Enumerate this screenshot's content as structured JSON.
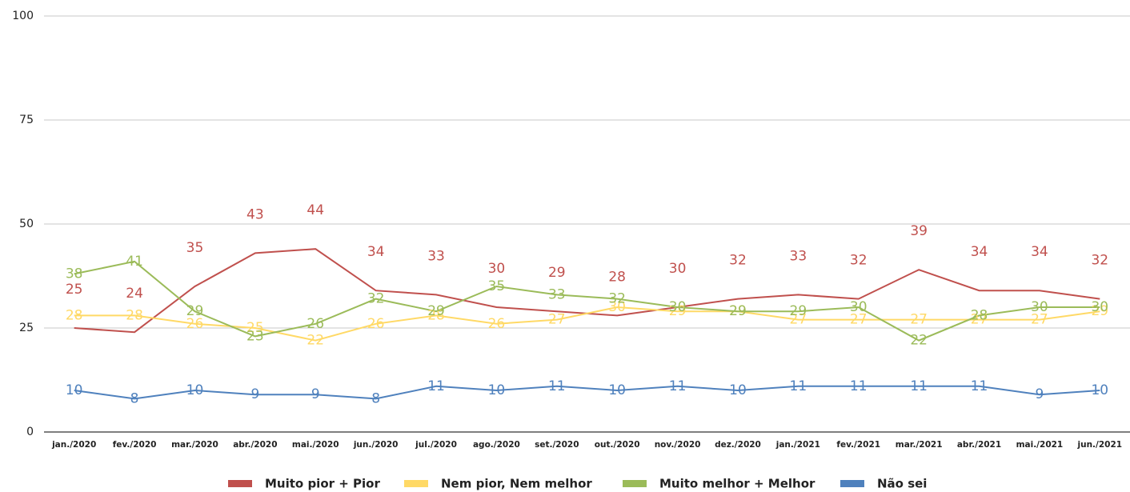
{
  "chart_data": {
    "type": "line",
    "categories": [
      "jan./2020",
      "fev./2020",
      "mar./2020",
      "abr./2020",
      "mai./2020",
      "jun./2020",
      "jul./2020",
      "ago./2020",
      "set./2020",
      "out./2020",
      "nov./2020",
      "dez./2020",
      "jan./2021",
      "fev./2021",
      "mar./2021",
      "abr./2021",
      "mai./2021",
      "jun./2021"
    ],
    "series": [
      {
        "name": "Muito pior + Pior",
        "color": "#c0504d",
        "values": [
          25,
          24,
          35,
          43,
          44,
          34,
          33,
          30,
          29,
          28,
          30,
          32,
          33,
          32,
          39,
          34,
          34,
          32
        ]
      },
      {
        "name": "Nem pior, Nem melhor",
        "color": "#ffd966",
        "values": [
          28,
          28,
          26,
          25,
          22,
          26,
          28,
          26,
          27,
          30,
          29,
          29,
          27,
          27,
          27,
          27,
          27,
          29
        ]
      },
      {
        "name": "Muito melhor + Melhor",
        "color": "#9bbb59",
        "values": [
          38,
          41,
          29,
          23,
          26,
          32,
          29,
          35,
          33,
          32,
          30,
          29,
          29,
          30,
          22,
          28,
          30,
          30
        ]
      },
      {
        "name": "Não sei",
        "color": "#4f81bd",
        "values": [
          10,
          8,
          10,
          9,
          9,
          8,
          11,
          10,
          11,
          10,
          11,
          10,
          11,
          11,
          11,
          11,
          9,
          10
        ]
      }
    ],
    "ylim": [
      0,
      100
    ],
    "yticks": [
      0,
      25,
      50,
      75,
      100
    ],
    "grid": true,
    "legend": "bottom"
  }
}
